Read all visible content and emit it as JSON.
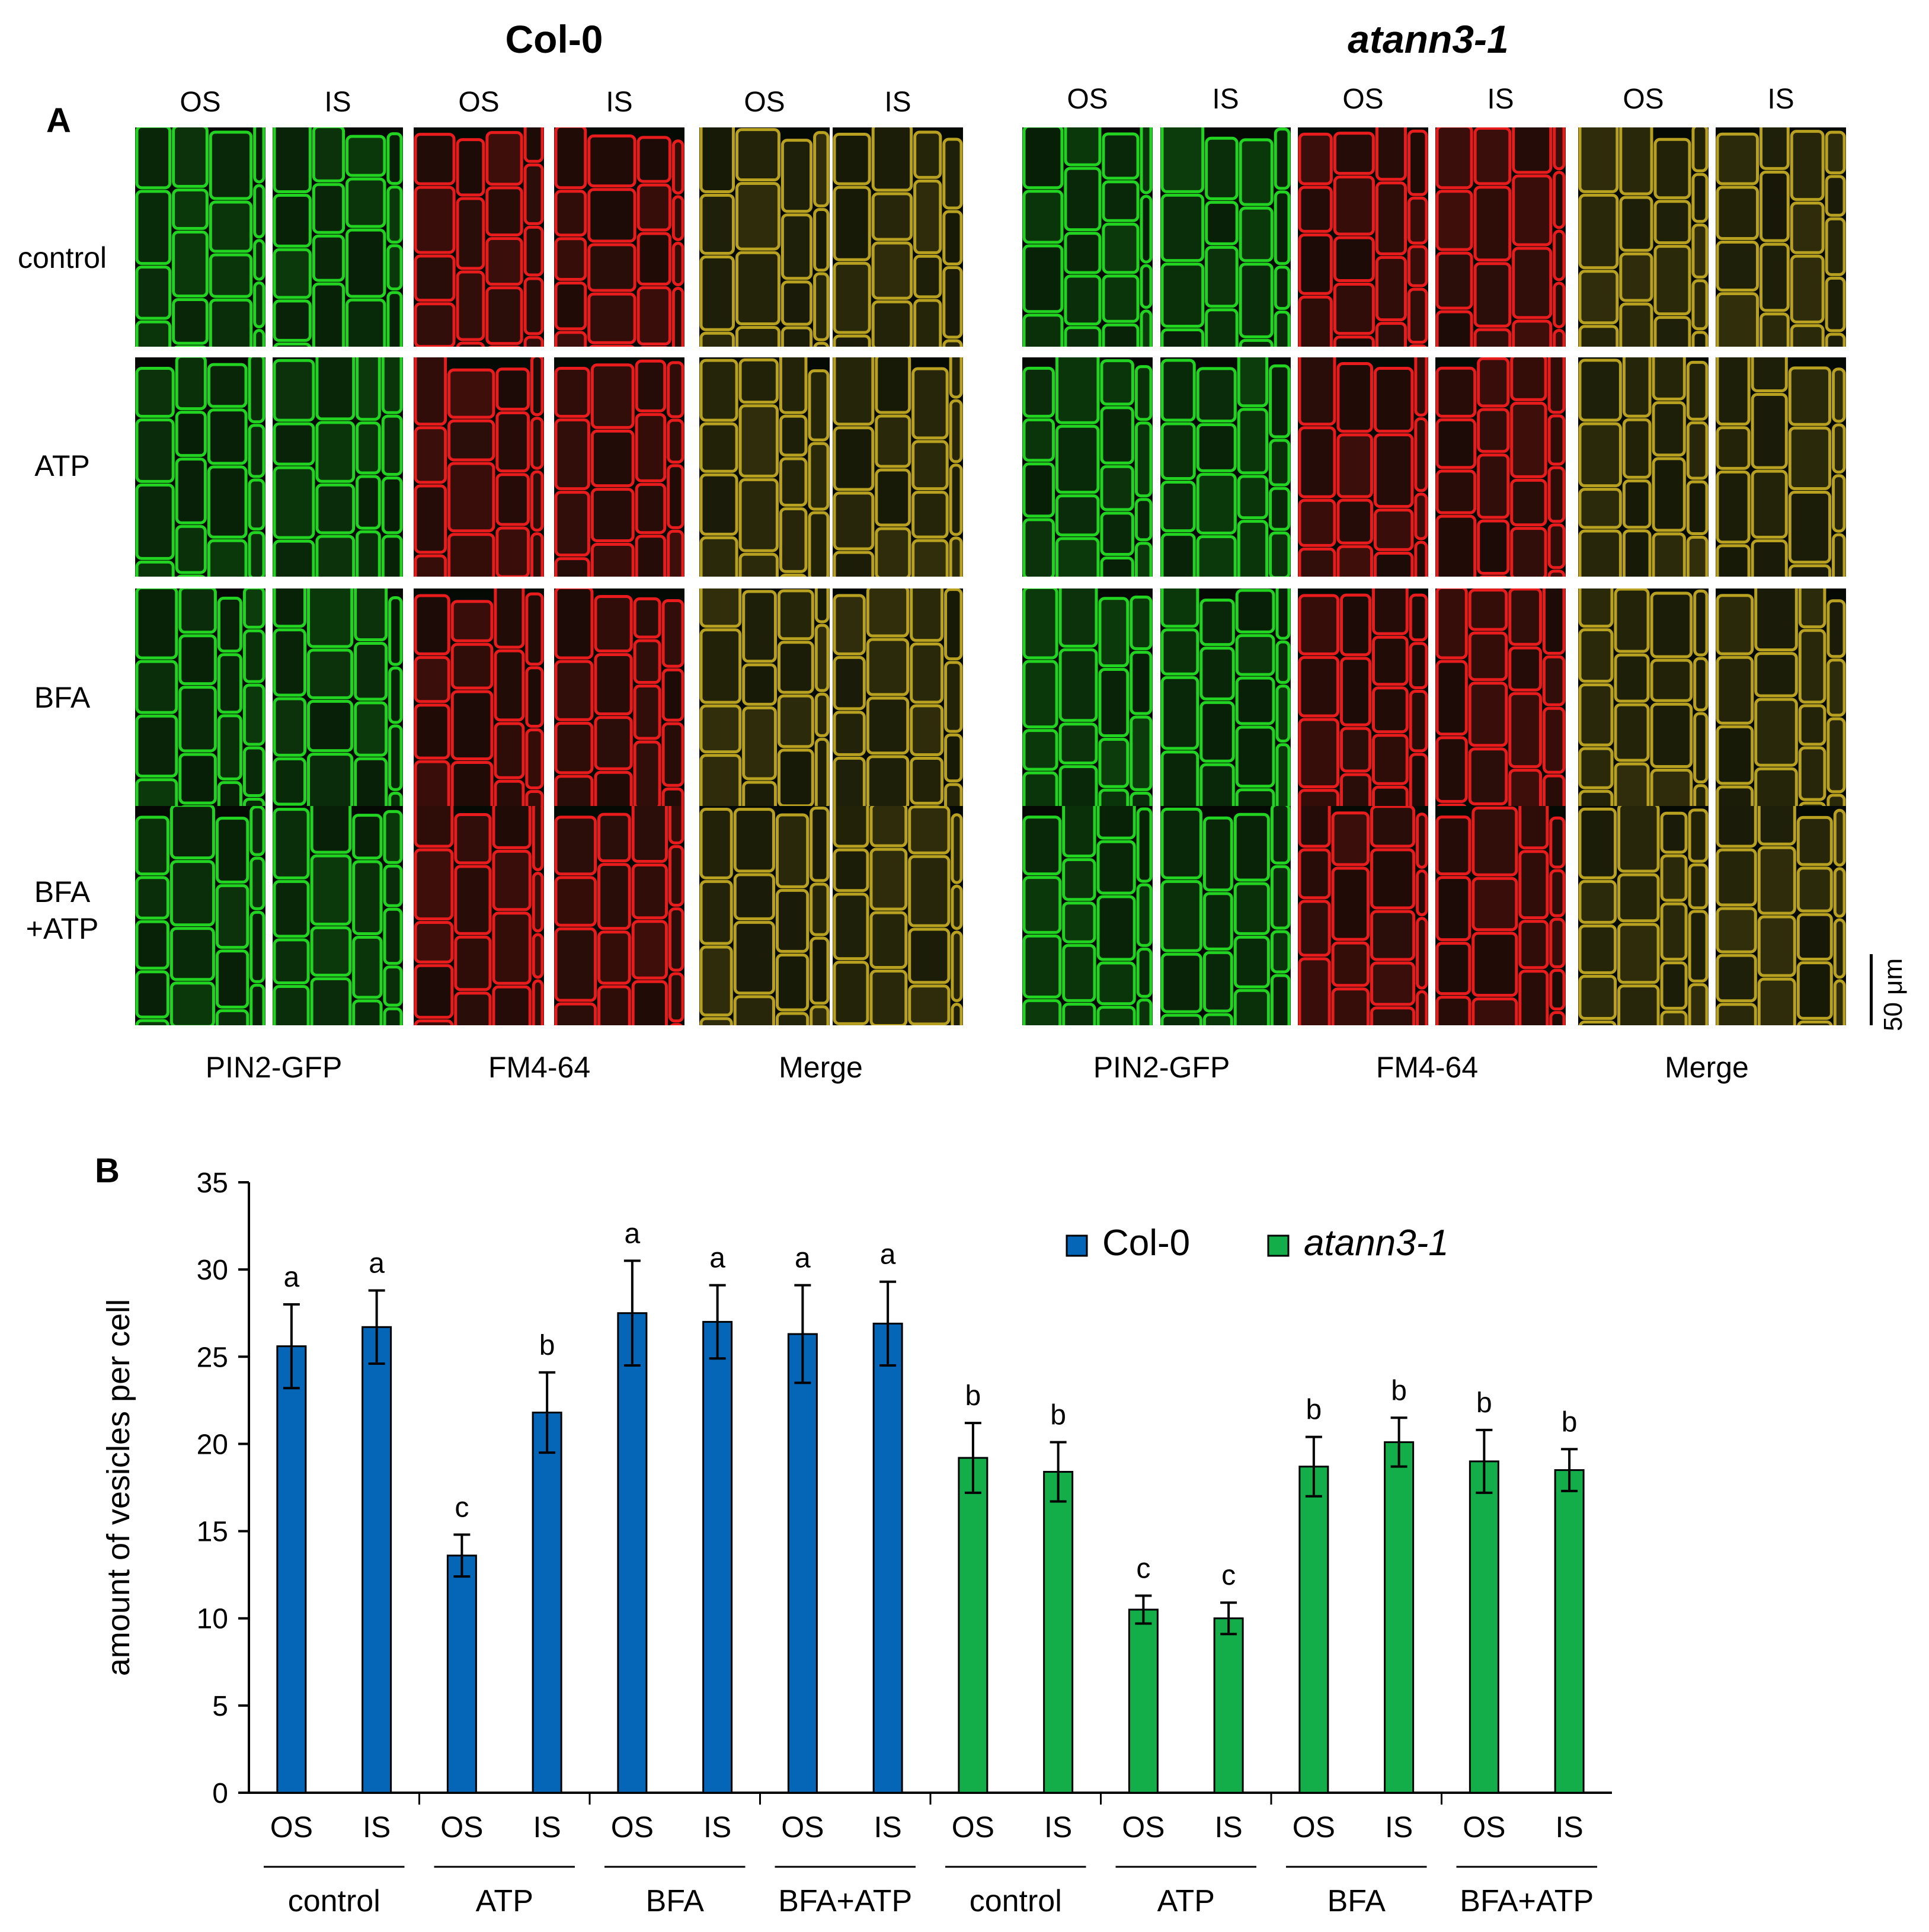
{
  "panelA": {
    "letter": "A",
    "genotypes": [
      {
        "name": "Col-0",
        "italic": false
      },
      {
        "name": "atann3-1",
        "italic": true
      }
    ],
    "surface_labels": [
      "OS",
      "IS"
    ],
    "treatments": [
      "control",
      "ATP",
      "BFA",
      "BFA\n+ATP"
    ],
    "channels": [
      "PIN2-GFP",
      "FM4-64",
      "Merge"
    ],
    "channel_colors": {
      "PIN2-GFP": "#22d322",
      "FM4-64": "#e81c1c",
      "Merge": "#b8a020"
    },
    "scale_bar": "50 μm"
  },
  "panelB": {
    "letter": "B",
    "chart_data": {
      "type": "bar",
      "ylabel": "amount of vesicles per cell",
      "xlabel": "",
      "ylim": [
        0,
        35
      ],
      "yticks": [
        0,
        5,
        10,
        15,
        20,
        25,
        30,
        35
      ],
      "legend_placement": "top-right",
      "legend": [
        {
          "name": "Col-0",
          "color": "#0566b8",
          "italic": false
        },
        {
          "name": "atann3-1",
          "color": "#13ad4a",
          "italic": true
        }
      ],
      "categories": [
        "OS",
        "IS",
        "OS",
        "IS",
        "OS",
        "IS",
        "OS",
        "IS",
        "OS",
        "IS",
        "OS",
        "IS",
        "OS",
        "IS",
        "OS",
        "IS"
      ],
      "groups": [
        "control",
        "ATP",
        "BFA",
        "BFA+ATP",
        "control",
        "ATP",
        "BFA",
        "BFA+ATP"
      ],
      "values": [
        25.6,
        26.7,
        13.6,
        21.8,
        27.5,
        27.0,
        26.3,
        26.9,
        19.2,
        18.4,
        10.5,
        10.0,
        18.7,
        20.1,
        19.0,
        18.5
      ],
      "errors": [
        2.4,
        2.1,
        1.2,
        2.3,
        3.0,
        2.1,
        2.8,
        2.4,
        2.0,
        1.7,
        0.8,
        0.9,
        1.7,
        1.4,
        1.8,
        1.2
      ],
      "series_index": [
        0,
        0,
        0,
        0,
        0,
        0,
        0,
        0,
        1,
        1,
        1,
        1,
        1,
        1,
        1,
        1
      ],
      "annotations": [
        "a",
        "a",
        "c",
        "b",
        "a",
        "a",
        "a",
        "a",
        "b",
        "b",
        "c",
        "c",
        "b",
        "b",
        "b",
        "b"
      ]
    }
  }
}
